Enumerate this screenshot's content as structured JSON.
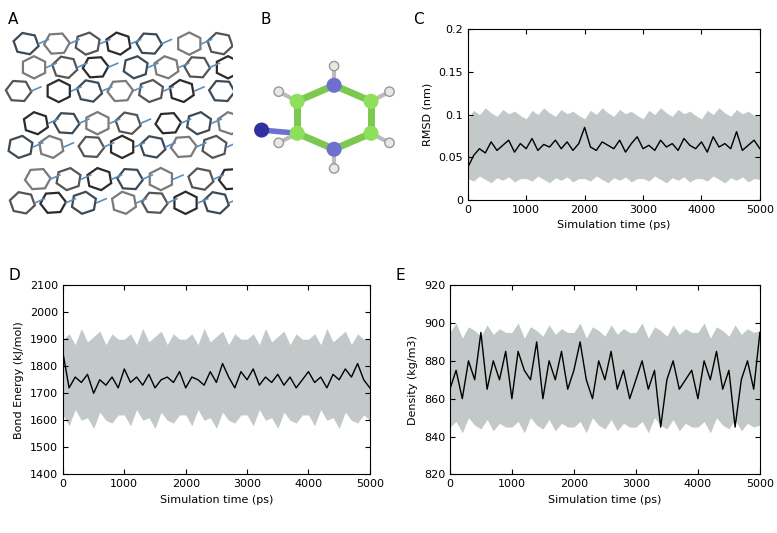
{
  "panel_labels": [
    "A",
    "B"
  ],
  "chart_data": [
    {
      "type": "line",
      "title": "C",
      "xlabel": "Simulation time (ps)",
      "ylabel": "RMSD (nm)",
      "xlim": [
        0,
        5000
      ],
      "xticks": [
        0,
        1000,
        2000,
        3000,
        4000,
        5000
      ],
      "ylim": [
        0,
        0.2
      ],
      "yticks": [
        0,
        0.05,
        0.1,
        0.15,
        0.2
      ],
      "x": [
        0,
        100,
        200,
        300,
        400,
        500,
        600,
        700,
        800,
        900,
        1000,
        1100,
        1200,
        1300,
        1400,
        1500,
        1600,
        1700,
        1800,
        1900,
        2000,
        2100,
        2200,
        2300,
        2400,
        2500,
        2600,
        2700,
        2800,
        2900,
        3000,
        3100,
        3200,
        3300,
        3400,
        3500,
        3600,
        3700,
        3800,
        3900,
        4000,
        4100,
        4200,
        4300,
        4400,
        4500,
        4600,
        4700,
        4800,
        4900,
        5000
      ],
      "series": [
        {
          "color": "#000000",
          "values": [
            0.038,
            0.052,
            0.06,
            0.055,
            0.068,
            0.058,
            0.064,
            0.07,
            0.056,
            0.066,
            0.06,
            0.072,
            0.058,
            0.065,
            0.062,
            0.07,
            0.06,
            0.068,
            0.058,
            0.066,
            0.085,
            0.062,
            0.058,
            0.068,
            0.064,
            0.06,
            0.07,
            0.056,
            0.066,
            0.074,
            0.06,
            0.064,
            0.058,
            0.07,
            0.062,
            0.066,
            0.058,
            0.072,
            0.064,
            0.06,
            0.068,
            0.056,
            0.074,
            0.062,
            0.066,
            0.06,
            0.08,
            0.058,
            0.064,
            0.07,
            0.06
          ]
        }
      ],
      "spread": {
        "color": "#c3c8c8",
        "lower": [
          0.025,
          0.022,
          0.028,
          0.024,
          0.02,
          0.026,
          0.023,
          0.027,
          0.021,
          0.025,
          0.025,
          0.022,
          0.028,
          0.024,
          0.02,
          0.026,
          0.023,
          0.027,
          0.021,
          0.025,
          0.025,
          0.022,
          0.028,
          0.024,
          0.02,
          0.026,
          0.023,
          0.027,
          0.021,
          0.025,
          0.025,
          0.022,
          0.028,
          0.024,
          0.02,
          0.026,
          0.023,
          0.027,
          0.021,
          0.025,
          0.025,
          0.022,
          0.028,
          0.024,
          0.02,
          0.026,
          0.023,
          0.027,
          0.021,
          0.025,
          0.024
        ],
        "upper": [
          0.095,
          0.105,
          0.1,
          0.108,
          0.102,
          0.098,
          0.106,
          0.101,
          0.104,
          0.099,
          0.095,
          0.105,
          0.1,
          0.108,
          0.102,
          0.098,
          0.106,
          0.101,
          0.104,
          0.099,
          0.095,
          0.105,
          0.1,
          0.108,
          0.102,
          0.098,
          0.106,
          0.101,
          0.104,
          0.099,
          0.095,
          0.105,
          0.1,
          0.108,
          0.102,
          0.098,
          0.106,
          0.101,
          0.104,
          0.099,
          0.095,
          0.105,
          0.1,
          0.108,
          0.102,
          0.098,
          0.106,
          0.101,
          0.104,
          0.099,
          0.1
        ]
      }
    },
    {
      "type": "line",
      "title": "D",
      "xlabel": "Simulation time (ps)",
      "ylabel": "Bond Energy (kJ/mol)",
      "xlim": [
        0,
        5000
      ],
      "xticks": [
        0,
        1000,
        2000,
        3000,
        4000,
        5000
      ],
      "ylim": [
        1400,
        2100
      ],
      "yticks": [
        1400,
        1500,
        1600,
        1700,
        1800,
        1900,
        2000,
        2100
      ],
      "x": [
        0,
        100,
        200,
        300,
        400,
        500,
        600,
        700,
        800,
        900,
        1000,
        1100,
        1200,
        1300,
        1400,
        1500,
        1600,
        1700,
        1800,
        1900,
        2000,
        2100,
        2200,
        2300,
        2400,
        2500,
        2600,
        2700,
        2800,
        2900,
        3000,
        3100,
        3200,
        3300,
        3400,
        3500,
        3600,
        3700,
        3800,
        3900,
        4000,
        4100,
        4200,
        4300,
        4400,
        4500,
        4600,
        4700,
        4800,
        4900,
        5000
      ],
      "series": [
        {
          "color": "#000000",
          "values": [
            1850,
            1720,
            1760,
            1740,
            1770,
            1700,
            1750,
            1730,
            1760,
            1720,
            1790,
            1740,
            1760,
            1730,
            1770,
            1720,
            1750,
            1760,
            1740,
            1780,
            1720,
            1760,
            1750,
            1730,
            1780,
            1740,
            1810,
            1760,
            1720,
            1780,
            1750,
            1790,
            1730,
            1760,
            1740,
            1770,
            1730,
            1760,
            1720,
            1750,
            1780,
            1740,
            1760,
            1720,
            1770,
            1750,
            1790,
            1760,
            1810,
            1750,
            1720
          ]
        }
      ],
      "spread": {
        "color": "#c3c8c8",
        "lower": [
          1620,
          1580,
          1640,
          1600,
          1610,
          1570,
          1630,
          1600,
          1590,
          1620,
          1620,
          1580,
          1640,
          1600,
          1610,
          1570,
          1630,
          1600,
          1590,
          1620,
          1620,
          1580,
          1640,
          1600,
          1610,
          1570,
          1630,
          1600,
          1590,
          1620,
          1620,
          1580,
          1640,
          1600,
          1610,
          1570,
          1630,
          1600,
          1590,
          1620,
          1620,
          1580,
          1640,
          1600,
          1610,
          1570,
          1630,
          1600,
          1590,
          1620,
          1600
        ],
        "upper": [
          1900,
          1920,
          1880,
          1940,
          1890,
          1910,
          1930,
          1880,
          1920,
          1900,
          1900,
          1920,
          1880,
          1940,
          1890,
          1910,
          1930,
          1880,
          1920,
          1900,
          1900,
          1920,
          1880,
          1940,
          1890,
          1910,
          1930,
          1880,
          1920,
          1900,
          1900,
          1920,
          1880,
          1940,
          1890,
          1910,
          1930,
          1880,
          1920,
          1900,
          1900,
          1920,
          1880,
          1940,
          1890,
          1910,
          1930,
          1880,
          1920,
          1900,
          1900
        ]
      }
    },
    {
      "type": "line",
      "title": "E",
      "xlabel": "Simulation time (ps)",
      "ylabel": "Density (kg/m3)",
      "xlim": [
        0,
        5000
      ],
      "xticks": [
        0,
        1000,
        2000,
        3000,
        4000,
        5000
      ],
      "ylim": [
        820,
        920
      ],
      "yticks": [
        820,
        840,
        860,
        880,
        900,
        920
      ],
      "x": [
        0,
        100,
        200,
        300,
        400,
        500,
        600,
        700,
        800,
        900,
        1000,
        1100,
        1200,
        1300,
        1400,
        1500,
        1600,
        1700,
        1800,
        1900,
        2000,
        2100,
        2200,
        2300,
        2400,
        2500,
        2600,
        2700,
        2800,
        2900,
        3000,
        3100,
        3200,
        3300,
        3400,
        3500,
        3600,
        3700,
        3800,
        3900,
        4000,
        4100,
        4200,
        4300,
        4400,
        4500,
        4600,
        4700,
        4800,
        4900,
        5000
      ],
      "series": [
        {
          "color": "#000000",
          "values": [
            865,
            875,
            860,
            880,
            870,
            895,
            865,
            880,
            870,
            885,
            860,
            885,
            875,
            870,
            890,
            860,
            880,
            870,
            885,
            865,
            875,
            890,
            870,
            860,
            880,
            870,
            885,
            865,
            875,
            860,
            870,
            880,
            865,
            875,
            845,
            870,
            880,
            865,
            870,
            875,
            860,
            880,
            870,
            885,
            865,
            875,
            845,
            870,
            880,
            865,
            895
          ]
        }
      ],
      "spread": {
        "color": "#c3c8c8",
        "lower": [
          845,
          848,
          842,
          850,
          846,
          844,
          849,
          843,
          847,
          845,
          845,
          848,
          842,
          850,
          846,
          844,
          849,
          843,
          847,
          845,
          845,
          848,
          842,
          850,
          846,
          844,
          849,
          843,
          847,
          845,
          845,
          848,
          842,
          850,
          846,
          844,
          849,
          843,
          847,
          845,
          845,
          848,
          842,
          850,
          846,
          844,
          849,
          843,
          847,
          845,
          846
        ],
        "upper": [
          895,
          900,
          892,
          898,
          896,
          893,
          899,
          894,
          897,
          895,
          895,
          900,
          892,
          898,
          896,
          893,
          899,
          894,
          897,
          895,
          895,
          900,
          892,
          898,
          896,
          893,
          899,
          894,
          897,
          895,
          895,
          900,
          892,
          898,
          896,
          893,
          899,
          894,
          897,
          895,
          895,
          900,
          892,
          898,
          896,
          893,
          899,
          894,
          897,
          895,
          896
        ]
      }
    }
  ]
}
